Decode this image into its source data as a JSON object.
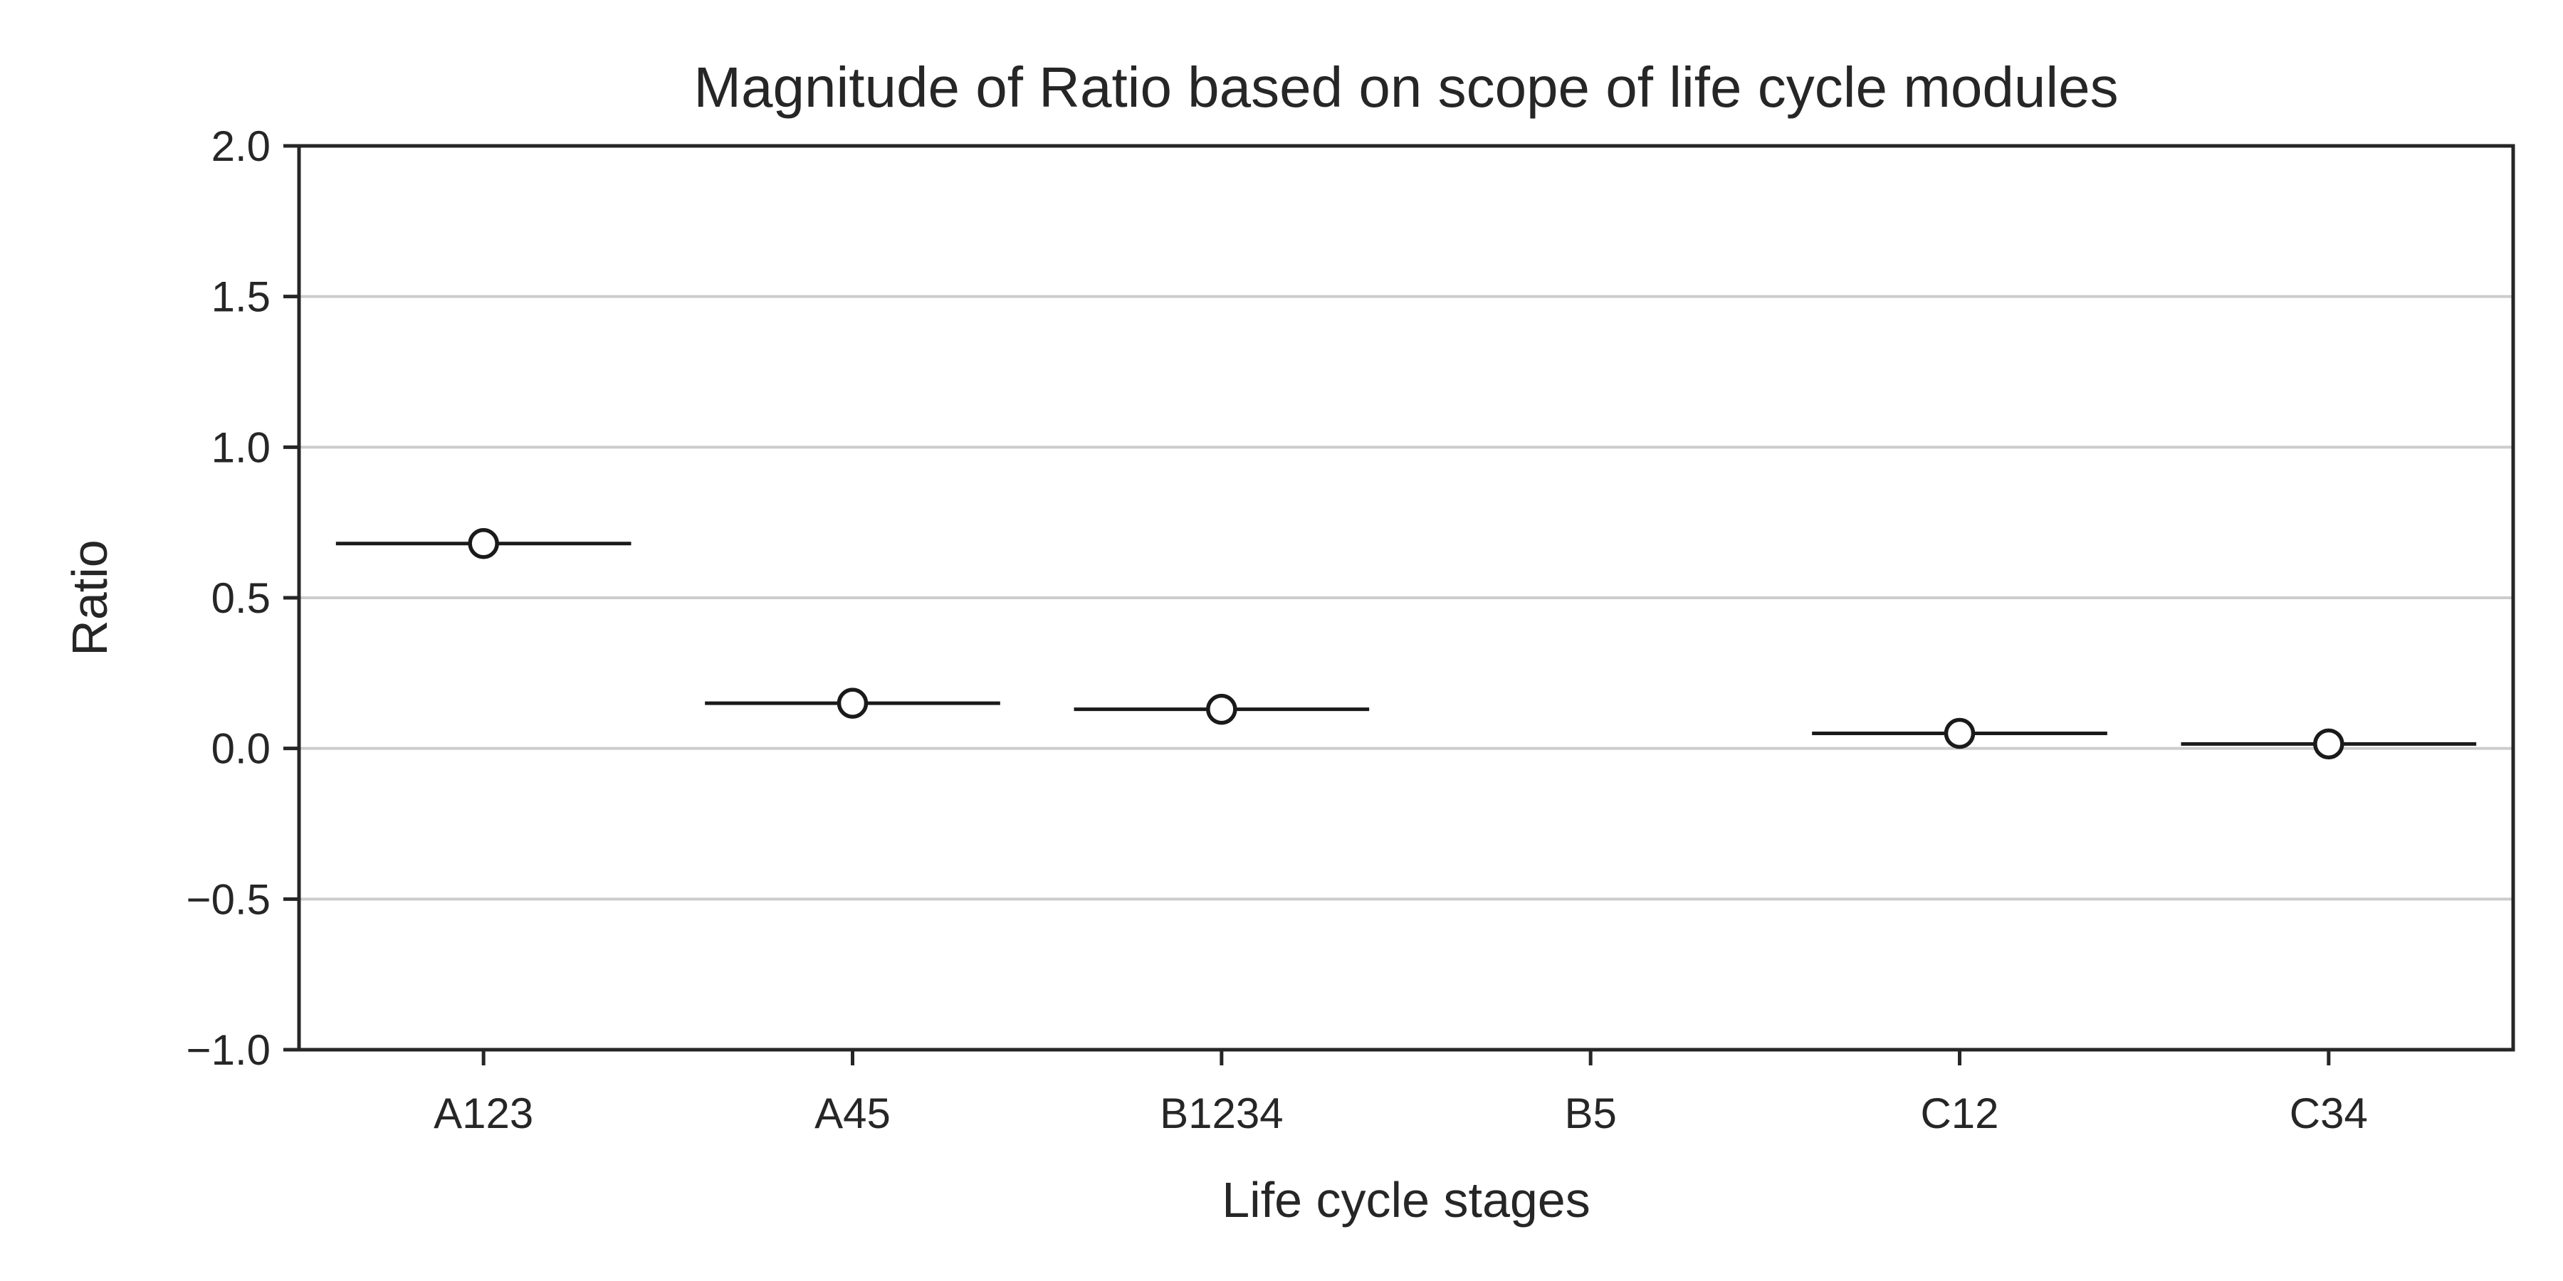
{
  "chart_data": {
    "type": "scatter",
    "title": "Magnitude of Ratio based on scope of life cycle modules",
    "xlabel": "Life cycle stages",
    "ylabel": "Ratio",
    "categories": [
      "A123",
      "A45",
      "B1234",
      "B5",
      "C12",
      "C34"
    ],
    "series": [
      {
        "values": [
          0.68,
          0.15,
          0.13,
          null,
          0.05,
          0.015
        ]
      }
    ],
    "ylim": [
      -1.0,
      2.0
    ],
    "yticks": [
      -1.0,
      -0.5,
      0.0,
      0.5,
      1.0,
      1.5,
      2.0
    ],
    "ytick_labels": [
      "−1.0",
      "−0.5",
      "0.0",
      "0.5",
      "1.0",
      "1.5",
      "2.0"
    ],
    "grid": "horizontal",
    "legend": "none",
    "mark_style": "mean-line-with-open-circle"
  },
  "colors": {
    "axis": "#262626",
    "grid": "#cccccc",
    "mark": "#1a1a1a",
    "marker_fill": "#ffffff",
    "background": "#ffffff"
  }
}
